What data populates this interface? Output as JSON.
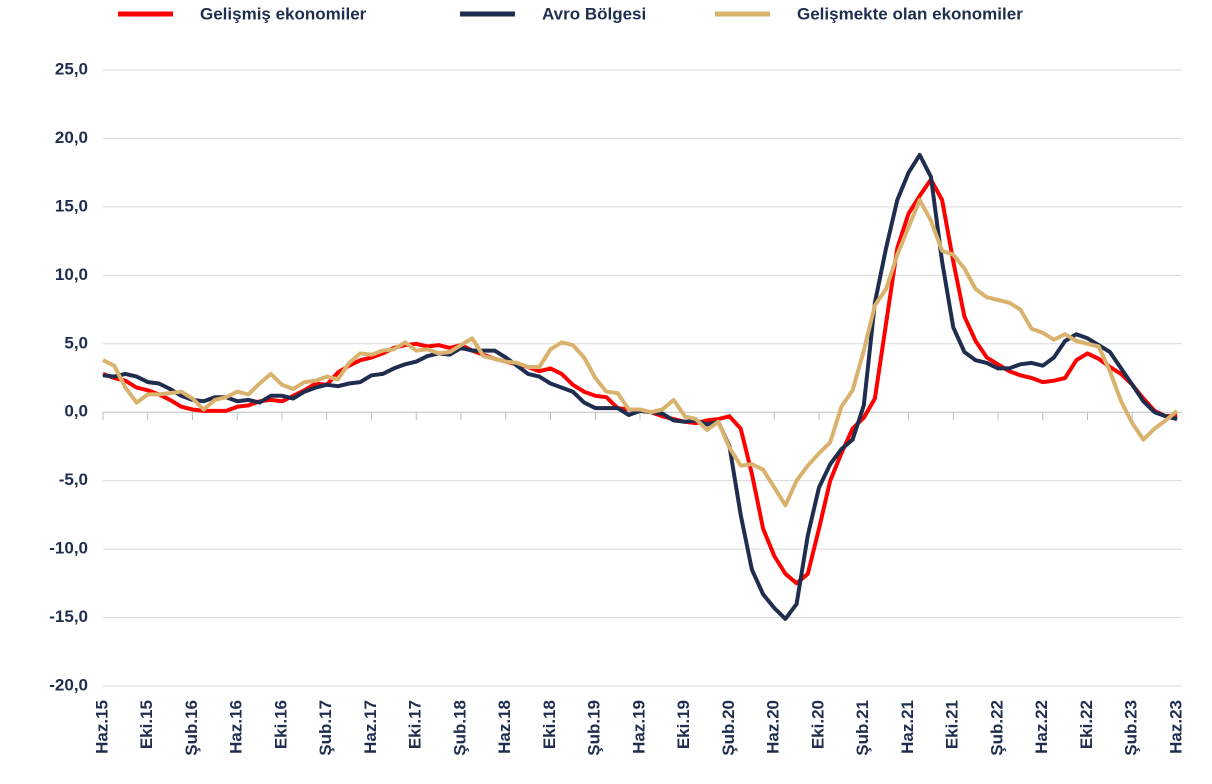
{
  "chart_data": {
    "type": "line",
    "categories": [
      "Haz.15",
      null,
      null,
      null,
      "Eki.15",
      null,
      null,
      null,
      "Şub.16",
      null,
      null,
      null,
      "Haz.16",
      null,
      null,
      null,
      "Eki.16",
      null,
      null,
      null,
      "Şub.17",
      null,
      null,
      null,
      "Haz.17",
      null,
      null,
      null,
      "Eki.17",
      null,
      null,
      null,
      "Şub.18",
      null,
      null,
      null,
      "Haz.18",
      null,
      null,
      null,
      "Eki.18",
      null,
      null,
      null,
      "Şub.19",
      null,
      null,
      null,
      "Haz.19",
      null,
      null,
      null,
      "Eki.19",
      null,
      null,
      null,
      "Şub.20",
      null,
      null,
      null,
      "Haz.20",
      null,
      null,
      null,
      "Eki.20",
      null,
      null,
      null,
      "Şub.21",
      null,
      null,
      null,
      "Haz.21",
      null,
      null,
      null,
      "Eki.21",
      null,
      null,
      null,
      "Şub.22",
      null,
      null,
      null,
      "Haz.22",
      null,
      null,
      null,
      "Eki.22",
      null,
      null,
      null,
      "Şub.23",
      null,
      null,
      null,
      "Haz.23"
    ],
    "series": [
      {
        "name": "Gelişmiş ekonomiler",
        "color": "#ff0000",
        "values": [
          2.8,
          2.5,
          2.3,
          1.8,
          1.6,
          1.3,
          0.9,
          0.4,
          0.2,
          0.1,
          0.1,
          0.1,
          0.4,
          0.5,
          0.8,
          0.9,
          0.8,
          1.2,
          1.6,
          2.1,
          2.0,
          2.9,
          3.4,
          3.8,
          4.0,
          4.3,
          4.7,
          4.9,
          5.0,
          4.8,
          4.9,
          4.7,
          4.9,
          4.5,
          4.2,
          3.9,
          3.7,
          3.5,
          3.3,
          3.0,
          3.2,
          2.8,
          2.0,
          1.5,
          1.2,
          1.1,
          0.3,
          0.2,
          0.1,
          0.0,
          -0.3,
          -0.5,
          -0.7,
          -0.8,
          -0.6,
          -0.5,
          -0.3,
          -1.2,
          -4.5,
          -8.5,
          -10.5,
          -11.8,
          -12.5,
          -11.8,
          -8.5,
          -5.0,
          -3.0,
          -1.2,
          -0.4,
          1.0,
          6.5,
          12.0,
          14.5,
          15.8,
          17.0,
          15.5,
          11.0,
          7.0,
          5.2,
          4.0,
          3.5,
          3.0,
          2.7,
          2.5,
          2.2,
          2.3,
          2.5,
          3.8,
          4.3,
          3.9,
          3.3,
          2.8,
          2.0,
          1.0,
          0.1,
          -0.3,
          -0.2
        ]
      },
      {
        "name": "Avro Bölgesi",
        "color": "#1f2d4e",
        "values": [
          2.7,
          2.6,
          2.8,
          2.6,
          2.2,
          2.1,
          1.7,
          1.2,
          0.9,
          0.8,
          1.1,
          1.1,
          0.8,
          0.9,
          0.7,
          1.2,
          1.2,
          1.0,
          1.5,
          1.8,
          2.0,
          1.9,
          2.1,
          2.2,
          2.7,
          2.8,
          3.2,
          3.5,
          3.7,
          4.1,
          4.3,
          4.2,
          4.7,
          4.5,
          4.5,
          4.5,
          4.0,
          3.4,
          2.8,
          2.6,
          2.1,
          1.8,
          1.5,
          0.7,
          0.3,
          0.3,
          0.3,
          -0.2,
          0.1,
          0.0,
          -0.1,
          -0.6,
          -0.7,
          -0.6,
          -0.9,
          -0.7,
          -2.5,
          -7.5,
          -11.5,
          -13.3,
          -14.3,
          -15.1,
          -14.0,
          -9.0,
          -5.5,
          -3.8,
          -2.7,
          -2.0,
          0.5,
          8.0,
          12.0,
          15.5,
          17.5,
          18.8,
          17.2,
          11.0,
          6.2,
          4.4,
          3.8,
          3.6,
          3.2,
          3.2,
          3.5,
          3.6,
          3.4,
          4.0,
          5.2,
          5.7,
          5.4,
          4.9,
          4.4,
          3.2,
          2.0,
          0.8,
          0.0,
          -0.3,
          -0.5
        ]
      },
      {
        "name": "Gelişmekte olan ekonomiler",
        "color": "#d9b36e",
        "values": [
          3.8,
          3.4,
          1.8,
          0.7,
          1.3,
          1.3,
          1.4,
          1.5,
          1.0,
          0.2,
          0.9,
          1.1,
          1.5,
          1.3,
          2.1,
          2.8,
          2.0,
          1.7,
          2.2,
          2.3,
          2.6,
          2.4,
          3.6,
          4.3,
          4.2,
          4.5,
          4.6,
          5.1,
          4.5,
          4.6,
          4.3,
          4.4,
          4.9,
          5.4,
          4.1,
          3.9,
          3.7,
          3.6,
          3.3,
          3.3,
          4.6,
          5.1,
          4.9,
          4.0,
          2.5,
          1.5,
          1.4,
          0.2,
          0.2,
          0.0,
          0.2,
          0.9,
          -0.3,
          -0.5,
          -1.3,
          -0.7,
          -2.6,
          -3.9,
          -3.8,
          -4.2,
          -5.5,
          -6.8,
          -5.0,
          -3.9,
          -3.0,
          -2.2,
          0.4,
          1.6,
          4.5,
          7.8,
          9.0,
          11.5,
          13.5,
          15.5,
          14.0,
          11.8,
          11.5,
          10.5,
          9.0,
          8.4,
          8.2,
          8.0,
          7.5,
          6.1,
          5.8,
          5.3,
          5.7,
          5.2,
          5.0,
          4.8,
          3.0,
          0.8,
          -0.8,
          -2.0,
          -1.2,
          -0.6,
          0.1
        ]
      }
    ],
    "ylim": [
      -20,
      25
    ],
    "yticks": [
      {
        "value": -20,
        "label": "-20,0"
      },
      {
        "value": -15,
        "label": "-15,0"
      },
      {
        "value": -10,
        "label": "-10,0"
      },
      {
        "value": -5,
        "label": "-5,0"
      },
      {
        "value": 0,
        "label": "0,0"
      },
      {
        "value": 5,
        "label": "5,0"
      },
      {
        "value": 10,
        "label": "10,0"
      },
      {
        "value": 15,
        "label": "15,0"
      },
      {
        "value": 20,
        "label": "20,0"
      },
      {
        "value": 25,
        "label": "25,0"
      }
    ],
    "grid": true,
    "legend": "top"
  }
}
